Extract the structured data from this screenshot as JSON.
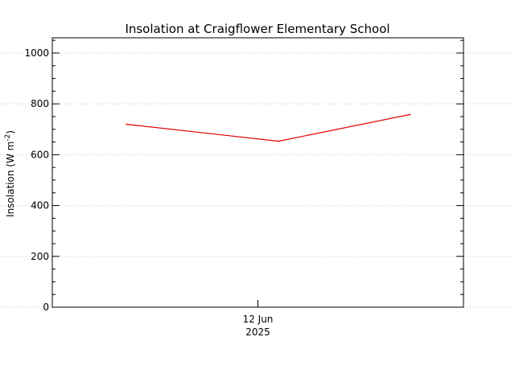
{
  "chart_data": {
    "type": "line",
    "title": "Insolation at Craigflower Elementary School",
    "ylabel": "Insolation (W m",
    "ylabel_sup": "-2",
    "ylabel_close": ")",
    "xlabel": "",
    "x_tick_labels": [
      {
        "line1": "12 Jun",
        "line2": "2025",
        "x": 0.5
      }
    ],
    "x_range": [
      0,
      1
    ],
    "ylim": [
      0,
      1060
    ],
    "y_ticks": [
      0,
      200,
      400,
      600,
      800,
      1000
    ],
    "y_minor_step": 50,
    "grid": true,
    "series": [
      {
        "color": "#e00000",
        "points": [
          {
            "x": 0.18,
            "y": 720
          },
          {
            "x": 0.55,
            "y": 653
          },
          {
            "x": 0.87,
            "y": 758
          }
        ]
      }
    ]
  }
}
